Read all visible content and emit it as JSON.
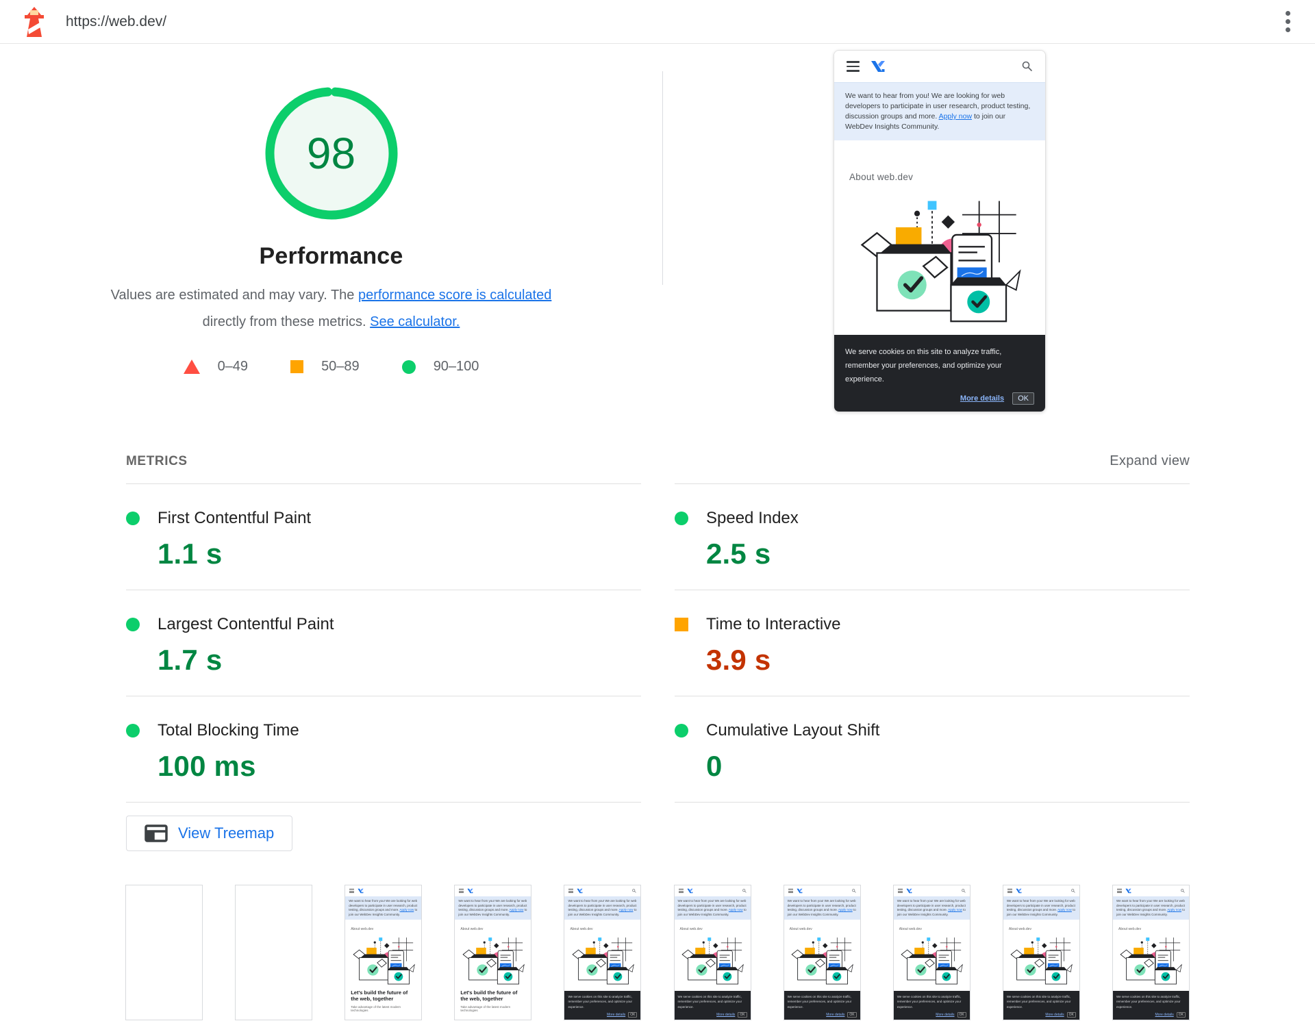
{
  "topbar": {
    "url": "https://web.dev/"
  },
  "score": {
    "value": 98,
    "max": 100,
    "title": "Performance",
    "desc_before": "Values are estimated and may vary. The ",
    "desc_link1": "performance score is calculated",
    "desc_mid": " directly from these metrics. ",
    "desc_link2": "See calculator.",
    "legend": [
      {
        "shape": "triangle",
        "range": "0–49",
        "color": "#ff4e42"
      },
      {
        "shape": "square",
        "range": "50–89",
        "color": "#ffa400"
      },
      {
        "shape": "circle",
        "range": "90–100",
        "color": "#0cce6b"
      }
    ]
  },
  "screenshot": {
    "banner_text": "We want to hear from you! We are looking for web developers to participate in user research, product testing, discussion groups and more. ",
    "banner_link": "Apply now",
    "banner_after": " to join our WebDev Insights Community.",
    "about": "About web.dev",
    "cookie_text": "We serve cookies on this site to analyze traffic, remember your preferences, and optimize your experience.",
    "cookie_link": "More details",
    "cookie_ok": "OK"
  },
  "metrics": {
    "section_label": "METRICS",
    "expand_label": "Expand view",
    "items": [
      {
        "label": "First Contentful Paint",
        "value": "1.1 s",
        "rating": "good"
      },
      {
        "label": "Largest Contentful Paint",
        "value": "1.7 s",
        "rating": "good"
      },
      {
        "label": "Total Blocking Time",
        "value": "100 ms",
        "rating": "good"
      },
      {
        "label": "Speed Index",
        "value": "2.5 s",
        "rating": "good"
      },
      {
        "label": "Time to Interactive",
        "value": "3.9 s",
        "rating": "average"
      },
      {
        "label": "Cumulative Layout Shift",
        "value": "0",
        "rating": "good"
      }
    ]
  },
  "treemap": {
    "label": "View Treemap"
  },
  "filmstrip": {
    "frames": [
      "blank",
      "blank",
      "page",
      "page",
      "cookie",
      "cookie",
      "cookie",
      "cookie",
      "cookie",
      "cookie"
    ],
    "headline": "Let's build the future of the web, together",
    "subline": "Take advantage of the latest modern technologies"
  },
  "colors": {
    "good_icon": "#0cce6b",
    "good_text": "#018642",
    "average_icon": "#ffa400",
    "average_text": "#c33300",
    "fail_icon": "#ff4e42",
    "link": "#1a73e8"
  }
}
